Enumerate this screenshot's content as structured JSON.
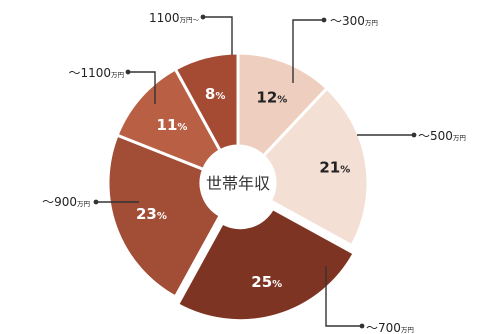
{
  "chart_data": {
    "type": "pie",
    "center_label": "世帯年収",
    "slices": [
      {
        "label_main": "～300",
        "label_unit": "万円",
        "value": 12,
        "value_text": "12",
        "unit": "%"
      },
      {
        "label_main": "～500",
        "label_unit": "万円",
        "value": 21,
        "value_text": "21",
        "unit": "%"
      },
      {
        "label_main": "～700",
        "label_unit": "万円",
        "value": 25,
        "value_text": "25",
        "unit": "%"
      },
      {
        "label_main": "～900",
        "label_unit": "万円",
        "value": 23,
        "value_text": "23",
        "unit": "%"
      },
      {
        "label_main": "～1100",
        "label_unit": "万円",
        "value": 11,
        "value_text": "11",
        "unit": "%"
      },
      {
        "label_main": "1100",
        "label_unit": "万円～",
        "value": 8,
        "value_text": "8",
        "unit": "%"
      }
    ],
    "colors": [
      "#eecfbf",
      "#f4dfd4",
      "#7e3422",
      "#a24e37",
      "#b85f44",
      "#a54a33"
    ],
    "exploded_slice_index": 2
  }
}
